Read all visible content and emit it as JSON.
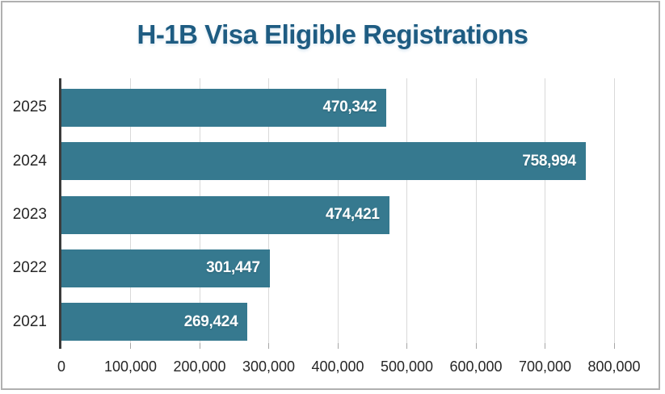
{
  "chart_data": {
    "type": "bar",
    "orientation": "horizontal",
    "title": "H-1B Visa Eligible Registrations",
    "categories": [
      "2025",
      "2024",
      "2023",
      "2022",
      "2021"
    ],
    "values": [
      470342,
      758994,
      474421,
      301447,
      269424
    ],
    "value_labels": [
      "470,342",
      "758,994",
      "474,421",
      "301,447",
      "269,424"
    ],
    "x_tick_labels": [
      "0",
      "100,000",
      "200,000",
      "300,000",
      "400,000",
      "500,000",
      "600,000",
      "700,000",
      "800,000"
    ],
    "xlim": [
      0,
      800000
    ],
    "x_tick_step": 100000,
    "grid": "vertical-gridlines-on",
    "legend": "none",
    "colors": {
      "bar": "#36798f",
      "title": "#1e5c82",
      "axis_labels": "#262626",
      "gridline": "#d9d9d9",
      "tick_mark": "#a6a6a6",
      "axis_line": "#3b3b3b",
      "border": "#b0b0b0",
      "value_label": "#ffffff",
      "background": "#ffffff"
    }
  }
}
